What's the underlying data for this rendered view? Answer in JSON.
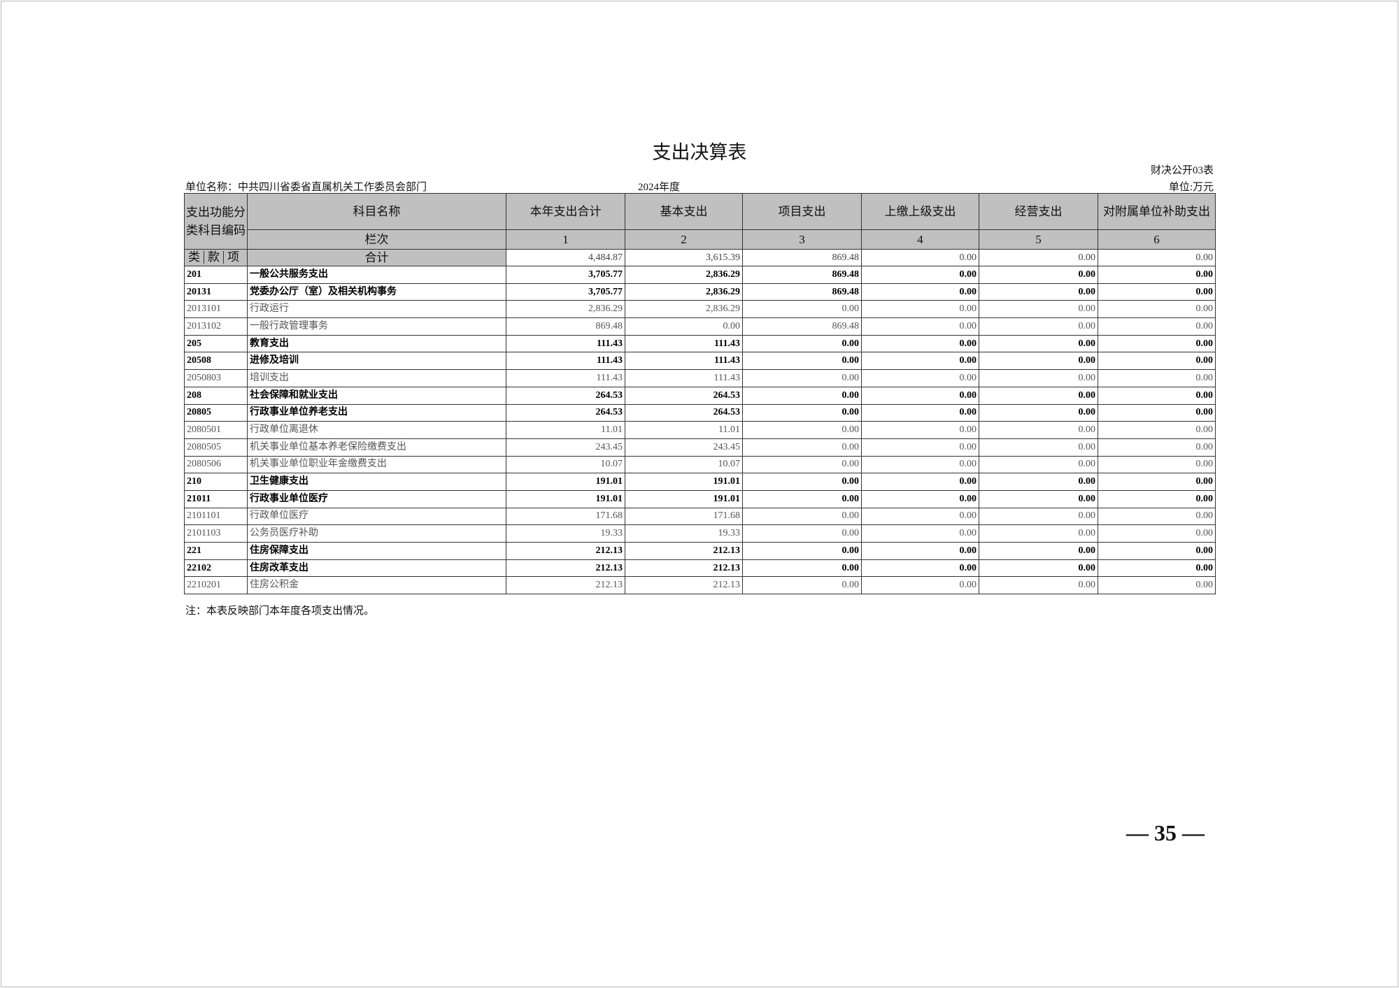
{
  "title": "支出决算表",
  "form_no": "财决公开03表",
  "unit_name": "单位名称：中共四川省委省直属机关工作委员会部门",
  "year": "2024年度",
  "unit": "单位:万元",
  "headers": {
    "code": "支出功能分类科目编码",
    "name": "科目名称",
    "cols": [
      "本年支出合计",
      "基本支出",
      "项目支出",
      "上缴上级支出",
      "经营支出",
      "对附属单位补助支出"
    ],
    "lanci": "栏次",
    "col_nums": [
      "1",
      "2",
      "3",
      "4",
      "5",
      "6"
    ],
    "lei": "类",
    "kuan": "款",
    "xiang": "项",
    "total_label": "合计"
  },
  "total": [
    "4,484.87",
    "3,615.39",
    "869.48",
    "0.00",
    "0.00",
    "0.00"
  ],
  "rows": [
    {
      "code": "201",
      "name": "一般公共服务支出",
      "v": [
        "3,705.77",
        "2,836.29",
        "869.48",
        "0.00",
        "0.00",
        "0.00"
      ]
    },
    {
      "code": "20131",
      "name": "党委办公厅（室）及相关机构事务",
      "v": [
        "3,705.77",
        "2,836.29",
        "869.48",
        "0.00",
        "0.00",
        "0.00"
      ]
    },
    {
      "code": "2013101",
      "name": "行政运行",
      "v": [
        "2,836.29",
        "2,836.29",
        "0.00",
        "0.00",
        "0.00",
        "0.00"
      ]
    },
    {
      "code": "2013102",
      "name": "一般行政管理事务",
      "v": [
        "869.48",
        "0.00",
        "869.48",
        "0.00",
        "0.00",
        "0.00"
      ]
    },
    {
      "code": "205",
      "name": "教育支出",
      "v": [
        "111.43",
        "111.43",
        "0.00",
        "0.00",
        "0.00",
        "0.00"
      ]
    },
    {
      "code": "20508",
      "name": "进修及培训",
      "v": [
        "111.43",
        "111.43",
        "0.00",
        "0.00",
        "0.00",
        "0.00"
      ]
    },
    {
      "code": "2050803",
      "name": "培训支出",
      "v": [
        "111.43",
        "111.43",
        "0.00",
        "0.00",
        "0.00",
        "0.00"
      ]
    },
    {
      "code": "208",
      "name": "社会保障和就业支出",
      "v": [
        "264.53",
        "264.53",
        "0.00",
        "0.00",
        "0.00",
        "0.00"
      ]
    },
    {
      "code": "20805",
      "name": "行政事业单位养老支出",
      "v": [
        "264.53",
        "264.53",
        "0.00",
        "0.00",
        "0.00",
        "0.00"
      ]
    },
    {
      "code": "2080501",
      "name": "行政单位离退休",
      "v": [
        "11.01",
        "11.01",
        "0.00",
        "0.00",
        "0.00",
        "0.00"
      ]
    },
    {
      "code": "2080505",
      "name": "机关事业单位基本养老保险缴费支出",
      "v": [
        "243.45",
        "243.45",
        "0.00",
        "0.00",
        "0.00",
        "0.00"
      ]
    },
    {
      "code": "2080506",
      "name": "机关事业单位职业年金缴费支出",
      "v": [
        "10.07",
        "10.07",
        "0.00",
        "0.00",
        "0.00",
        "0.00"
      ]
    },
    {
      "code": "210",
      "name": "卫生健康支出",
      "v": [
        "191.01",
        "191.01",
        "0.00",
        "0.00",
        "0.00",
        "0.00"
      ]
    },
    {
      "code": "21011",
      "name": "行政事业单位医疗",
      "v": [
        "191.01",
        "191.01",
        "0.00",
        "0.00",
        "0.00",
        "0.00"
      ]
    },
    {
      "code": "2101101",
      "name": "行政单位医疗",
      "v": [
        "171.68",
        "171.68",
        "0.00",
        "0.00",
        "0.00",
        "0.00"
      ]
    },
    {
      "code": "2101103",
      "name": "公务员医疗补助",
      "v": [
        "19.33",
        "19.33",
        "0.00",
        "0.00",
        "0.00",
        "0.00"
      ]
    },
    {
      "code": "221",
      "name": "住房保障支出",
      "v": [
        "212.13",
        "212.13",
        "0.00",
        "0.00",
        "0.00",
        "0.00"
      ]
    },
    {
      "code": "22102",
      "name": "住房改革支出",
      "v": [
        "212.13",
        "212.13",
        "0.00",
        "0.00",
        "0.00",
        "0.00"
      ]
    },
    {
      "code": "2210201",
      "name": "住房公积金",
      "v": [
        "212.13",
        "212.13",
        "0.00",
        "0.00",
        "0.00",
        "0.00"
      ]
    }
  ],
  "note": "注：本表反映部门本年度各项支出情况。",
  "page_number": "— 35 —"
}
